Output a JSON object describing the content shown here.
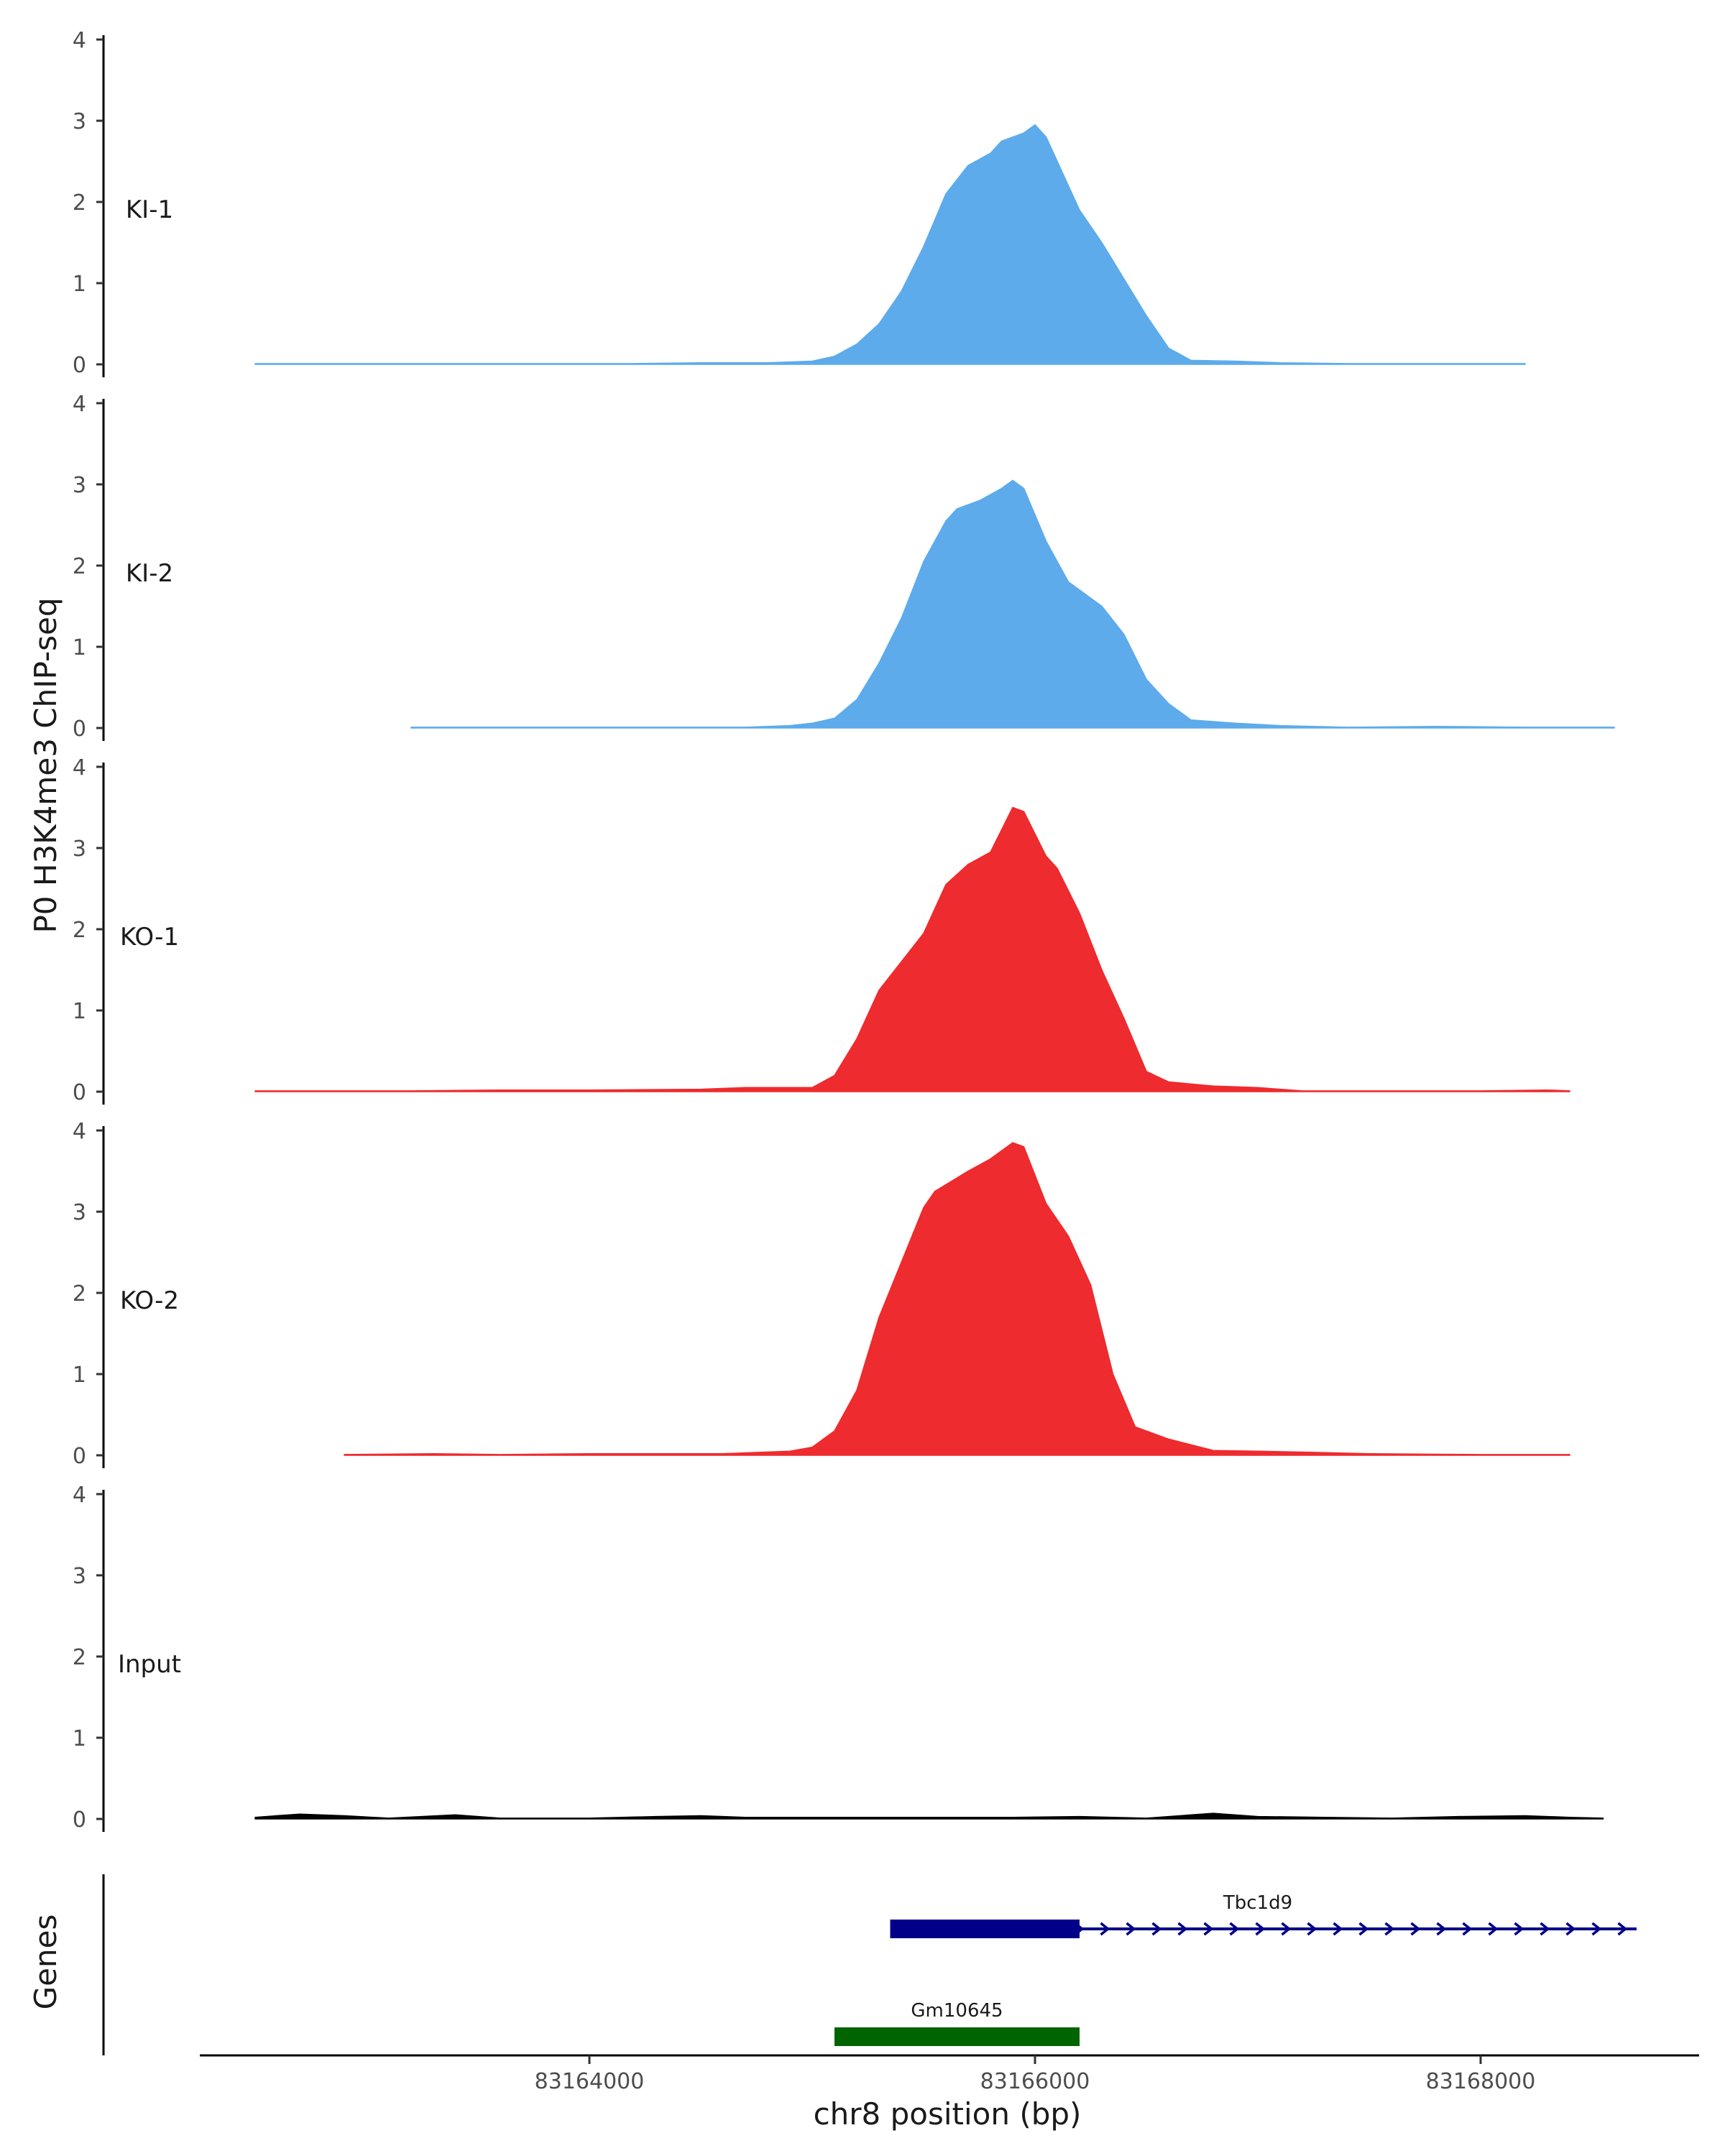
{
  "chart_data": {
    "type": "area",
    "ylabel": "P0 H3K4me3 ChIP-seq",
    "xlabel": "chr8 position (bp)",
    "genes_label": "Genes",
    "ylim": [
      0,
      4
    ],
    "y_ticks": [
      "0",
      "1",
      "2",
      "3",
      "4"
    ],
    "xlim": [
      83162300,
      83168800
    ],
    "x_ticks": [
      {
        "value": 83164000,
        "label": "83164000"
      },
      {
        "value": 83166000,
        "label": "83166000"
      },
      {
        "value": 83168000,
        "label": "83168000"
      }
    ],
    "tracks": [
      {
        "name": "KI-1",
        "color": "#5dabeb",
        "points": [
          [
            83162500,
            0.01
          ],
          [
            83162700,
            0.01
          ],
          [
            83163000,
            0.01
          ],
          [
            83163400,
            0.01
          ],
          [
            83163800,
            0.01
          ],
          [
            83164200,
            0.01
          ],
          [
            83164500,
            0.02
          ],
          [
            83164800,
            0.02
          ],
          [
            83165000,
            0.04
          ],
          [
            83165100,
            0.1
          ],
          [
            83165200,
            0.25
          ],
          [
            83165300,
            0.5
          ],
          [
            83165400,
            0.9
          ],
          [
            83165500,
            1.45
          ],
          [
            83165600,
            2.1
          ],
          [
            83165700,
            2.45
          ],
          [
            83165800,
            2.6
          ],
          [
            83165850,
            2.75
          ],
          [
            83165950,
            2.85
          ],
          [
            83166000,
            2.95
          ],
          [
            83166050,
            2.8
          ],
          [
            83166150,
            2.2
          ],
          [
            83166200,
            1.9
          ],
          [
            83166300,
            1.5
          ],
          [
            83166400,
            1.05
          ],
          [
            83166500,
            0.6
          ],
          [
            83166600,
            0.2
          ],
          [
            83166700,
            0.05
          ],
          [
            83166900,
            0.04
          ],
          [
            83167100,
            0.02
          ],
          [
            83167400,
            0.01
          ],
          [
            83167800,
            0.01
          ],
          [
            83168200,
            0.01
          ]
        ]
      },
      {
        "name": "KI-2",
        "color": "#5dabeb",
        "points": [
          [
            83163200,
            0.01
          ],
          [
            83163600,
            0.01
          ],
          [
            83164000,
            0.01
          ],
          [
            83164700,
            0.01
          ],
          [
            83164900,
            0.03
          ],
          [
            83165000,
            0.06
          ],
          [
            83165100,
            0.12
          ],
          [
            83165200,
            0.35
          ],
          [
            83165300,
            0.8
          ],
          [
            83165400,
            1.35
          ],
          [
            83165500,
            2.05
          ],
          [
            83165600,
            2.55
          ],
          [
            83165650,
            2.7
          ],
          [
            83165750,
            2.8
          ],
          [
            83165850,
            2.95
          ],
          [
            83165900,
            3.05
          ],
          [
            83165950,
            2.95
          ],
          [
            83166050,
            2.3
          ],
          [
            83166150,
            1.8
          ],
          [
            83166300,
            1.5
          ],
          [
            83166400,
            1.15
          ],
          [
            83166500,
            0.6
          ],
          [
            83166600,
            0.3
          ],
          [
            83166700,
            0.1
          ],
          [
            83166900,
            0.06
          ],
          [
            83167100,
            0.03
          ],
          [
            83167400,
            0.01
          ],
          [
            83167800,
            0.02
          ],
          [
            83168200,
            0.01
          ],
          [
            83168600,
            0.01
          ]
        ]
      },
      {
        "name": "KO-1",
        "color": "#ee2b2e",
        "points": [
          [
            83162500,
            0.01
          ],
          [
            83162800,
            0.01
          ],
          [
            83163200,
            0.01
          ],
          [
            83163600,
            0.02
          ],
          [
            83164000,
            0.02
          ],
          [
            83164500,
            0.03
          ],
          [
            83164700,
            0.05
          ],
          [
            83165000,
            0.05
          ],
          [
            83165100,
            0.2
          ],
          [
            83165200,
            0.65
          ],
          [
            83165300,
            1.25
          ],
          [
            83165500,
            1.95
          ],
          [
            83165600,
            2.55
          ],
          [
            83165700,
            2.8
          ],
          [
            83165800,
            2.95
          ],
          [
            83165900,
            3.5
          ],
          [
            83165950,
            3.45
          ],
          [
            83166050,
            2.9
          ],
          [
            83166100,
            2.75
          ],
          [
            83166200,
            2.2
          ],
          [
            83166300,
            1.5
          ],
          [
            83166400,
            0.9
          ],
          [
            83166500,
            0.25
          ],
          [
            83166600,
            0.12
          ],
          [
            83166800,
            0.07
          ],
          [
            83167000,
            0.05
          ],
          [
            83167200,
            0.01
          ],
          [
            83167500,
            0.01
          ],
          [
            83168000,
            0.01
          ],
          [
            83168300,
            0.02
          ],
          [
            83168400,
            0.01
          ]
        ]
      },
      {
        "name": "KO-2",
        "color": "#ee2b2e",
        "points": [
          [
            83162900,
            0.01
          ],
          [
            83163300,
            0.02
          ],
          [
            83163600,
            0.01
          ],
          [
            83164000,
            0.02
          ],
          [
            83164600,
            0.02
          ],
          [
            83164900,
            0.05
          ],
          [
            83165000,
            0.1
          ],
          [
            83165100,
            0.3
          ],
          [
            83165200,
            0.8
          ],
          [
            83165300,
            1.7
          ],
          [
            83165500,
            3.05
          ],
          [
            83165550,
            3.25
          ],
          [
            83165700,
            3.5
          ],
          [
            83165800,
            3.65
          ],
          [
            83165900,
            3.85
          ],
          [
            83165950,
            3.8
          ],
          [
            83166050,
            3.1
          ],
          [
            83166150,
            2.7
          ],
          [
            83166250,
            2.1
          ],
          [
            83166350,
            1.0
          ],
          [
            83166450,
            0.35
          ],
          [
            83166600,
            0.2
          ],
          [
            83166800,
            0.06
          ],
          [
            83167000,
            0.05
          ],
          [
            83167200,
            0.04
          ],
          [
            83167500,
            0.02
          ],
          [
            83168000,
            0.01
          ],
          [
            83168400,
            0.01
          ]
        ]
      },
      {
        "name": "Input",
        "color": "#000000",
        "points": [
          [
            83162500,
            0.02
          ],
          [
            83162700,
            0.06
          ],
          [
            83162900,
            0.04
          ],
          [
            83163100,
            0.01
          ],
          [
            83163400,
            0.05
          ],
          [
            83163600,
            0.01
          ],
          [
            83164000,
            0.01
          ],
          [
            83164300,
            0.03
          ],
          [
            83164500,
            0.04
          ],
          [
            83164700,
            0.02
          ],
          [
            83165000,
            0.02
          ],
          [
            83165300,
            0.02
          ],
          [
            83165600,
            0.02
          ],
          [
            83165900,
            0.02
          ],
          [
            83166200,
            0.03
          ],
          [
            83166500,
            0.01
          ],
          [
            83166800,
            0.07
          ],
          [
            83167000,
            0.03
          ],
          [
            83167300,
            0.02
          ],
          [
            83167600,
            0.01
          ],
          [
            83167900,
            0.03
          ],
          [
            83168200,
            0.04
          ],
          [
            83168400,
            0.02
          ],
          [
            83168550,
            0.01
          ]
        ]
      }
    ],
    "genes": [
      {
        "name": "Tbc1d9",
        "strand": "+",
        "color": "#000088",
        "start": 83165350,
        "end": 83168700,
        "exon_start": 83165350,
        "exon_end": 83166200
      },
      {
        "name": "Gm10645",
        "strand": "-",
        "color": "#006400",
        "start": 83165100,
        "end": 83166200,
        "exon_start": 83165100,
        "exon_end": 83166200
      }
    ]
  }
}
